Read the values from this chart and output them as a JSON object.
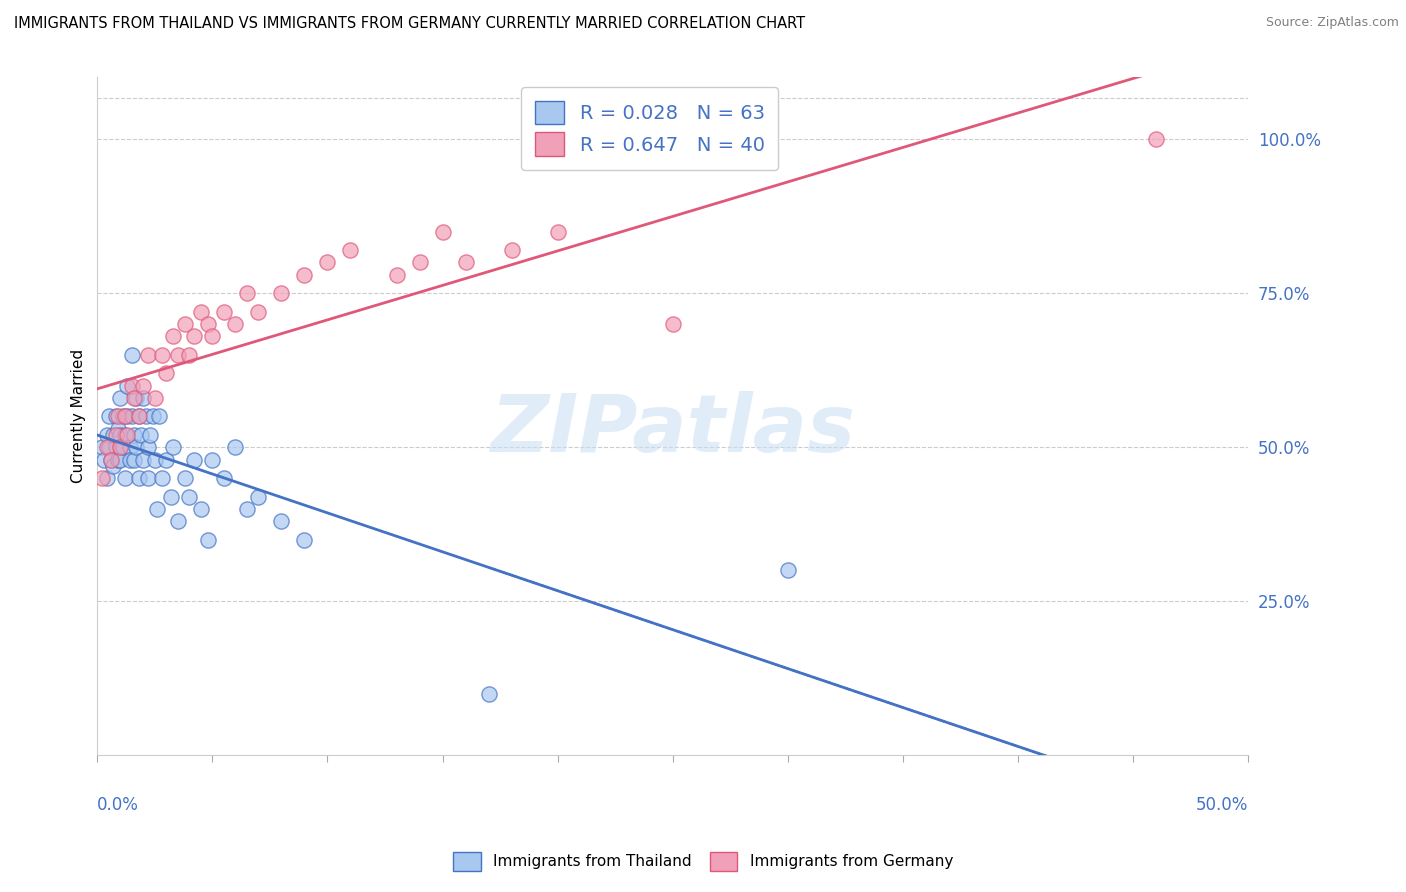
{
  "title": "IMMIGRANTS FROM THAILAND VS IMMIGRANTS FROM GERMANY CURRENTLY MARRIED CORRELATION CHART",
  "source": "Source: ZipAtlas.com",
  "ylabel": "Currently Married",
  "right_yticks": [
    0.0,
    0.25,
    0.5,
    0.75,
    1.0
  ],
  "right_yticklabels": [
    "",
    "25.0%",
    "50.0%",
    "75.0%",
    "100.0%"
  ],
  "R_thailand": 0.028,
  "N_thailand": 63,
  "R_germany": 0.647,
  "N_germany": 40,
  "color_thailand": "#a8c8f0",
  "color_germany": "#f0a0b8",
  "line_color_thailand": "#4472c4",
  "line_color_germany": "#e05878",
  "watermark": "ZIPatlas",
  "legend_label_thailand": "Immigrants from Thailand",
  "legend_label_germany": "Immigrants from Germany",
  "xmin": 0.0,
  "xmax": 0.5,
  "ymin": 0.0,
  "ymax": 1.1,
  "thailand_x": [
    0.002,
    0.003,
    0.004,
    0.004,
    0.005,
    0.005,
    0.006,
    0.007,
    0.007,
    0.008,
    0.008,
    0.009,
    0.009,
    0.01,
    0.01,
    0.01,
    0.01,
    0.011,
    0.011,
    0.012,
    0.012,
    0.013,
    0.013,
    0.014,
    0.014,
    0.015,
    0.015,
    0.016,
    0.016,
    0.017,
    0.017,
    0.018,
    0.018,
    0.019,
    0.02,
    0.02,
    0.021,
    0.022,
    0.022,
    0.023,
    0.024,
    0.025,
    0.026,
    0.027,
    0.028,
    0.03,
    0.032,
    0.033,
    0.035,
    0.038,
    0.04,
    0.042,
    0.045,
    0.048,
    0.05,
    0.055,
    0.06,
    0.065,
    0.07,
    0.08,
    0.09,
    0.17,
    0.3
  ],
  "thailand_y": [
    0.5,
    0.48,
    0.52,
    0.45,
    0.55,
    0.5,
    0.48,
    0.52,
    0.47,
    0.55,
    0.5,
    0.48,
    0.53,
    0.58,
    0.5,
    0.52,
    0.48,
    0.55,
    0.5,
    0.52,
    0.45,
    0.6,
    0.55,
    0.5,
    0.48,
    0.65,
    0.55,
    0.52,
    0.48,
    0.58,
    0.5,
    0.55,
    0.45,
    0.52,
    0.58,
    0.48,
    0.55,
    0.5,
    0.45,
    0.52,
    0.55,
    0.48,
    0.4,
    0.55,
    0.45,
    0.48,
    0.42,
    0.5,
    0.38,
    0.45,
    0.42,
    0.48,
    0.4,
    0.35,
    0.48,
    0.45,
    0.5,
    0.4,
    0.42,
    0.38,
    0.35,
    0.1,
    0.3
  ],
  "germany_x": [
    0.002,
    0.004,
    0.006,
    0.008,
    0.009,
    0.01,
    0.012,
    0.013,
    0.015,
    0.016,
    0.018,
    0.02,
    0.022,
    0.025,
    0.028,
    0.03,
    0.033,
    0.035,
    0.038,
    0.04,
    0.042,
    0.045,
    0.048,
    0.05,
    0.055,
    0.06,
    0.065,
    0.07,
    0.08,
    0.09,
    0.1,
    0.11,
    0.13,
    0.14,
    0.15,
    0.16,
    0.18,
    0.2,
    0.25,
    0.46
  ],
  "germany_y": [
    0.45,
    0.5,
    0.48,
    0.52,
    0.55,
    0.5,
    0.55,
    0.52,
    0.6,
    0.58,
    0.55,
    0.6,
    0.65,
    0.58,
    0.65,
    0.62,
    0.68,
    0.65,
    0.7,
    0.65,
    0.68,
    0.72,
    0.7,
    0.68,
    0.72,
    0.7,
    0.75,
    0.72,
    0.75,
    0.78,
    0.8,
    0.82,
    0.78,
    0.8,
    0.85,
    0.8,
    0.82,
    0.85,
    0.7,
    1.0
  ]
}
